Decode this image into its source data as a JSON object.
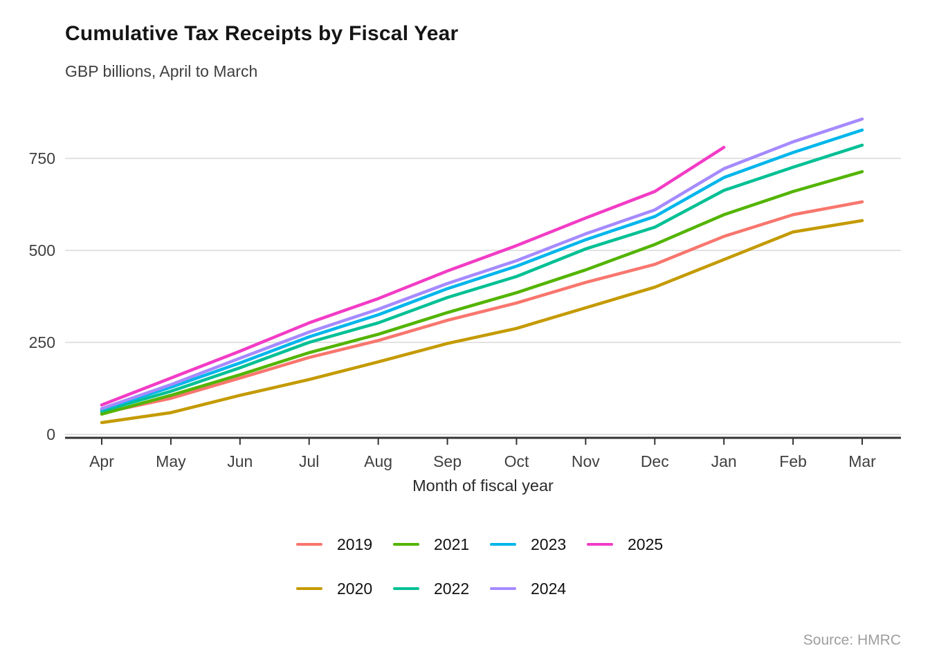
{
  "header": {
    "title": "Cumulative Tax Receipts by Fiscal Year",
    "subtitle": "GBP billions, April to March"
  },
  "footer": {
    "source": "Source: HMRC"
  },
  "chart_data": {
    "type": "line",
    "title": "Cumulative Tax Receipts by Fiscal Year",
    "subtitle": "GBP billions, April to March",
    "xlabel": "Month of fiscal year",
    "ylabel": "",
    "x_categories": [
      "Apr",
      "May",
      "Jun",
      "Jul",
      "Aug",
      "Sep",
      "Oct",
      "Nov",
      "Dec",
      "Jan",
      "Feb",
      "Mar"
    ],
    "y_ticks": [
      0,
      250,
      500,
      750
    ],
    "ylim": [
      0,
      880
    ],
    "grid": true,
    "legend_position": "bottom",
    "legend_order": [
      "2019",
      "2021",
      "2023",
      "2025",
      "2020",
      "2022",
      "2024"
    ],
    "series": [
      {
        "name": "2019",
        "color": "#F8766D",
        "values": [
          58,
          98,
          153,
          209,
          255,
          310,
          357,
          413,
          462,
          538,
          597,
          632
        ]
      },
      {
        "name": "2020",
        "color": "#C49A00",
        "values": [
          32,
          59,
          106,
          149,
          197,
          247,
          288,
          344,
          400,
          475,
          550,
          581
        ]
      },
      {
        "name": "2021",
        "color": "#53B400",
        "values": [
          55,
          106,
          162,
          222,
          272,
          331,
          385,
          447,
          516,
          597,
          660,
          714
        ]
      },
      {
        "name": "2022",
        "color": "#00C094",
        "values": [
          63,
          117,
          181,
          250,
          303,
          372,
          429,
          504,
          563,
          663,
          726,
          786
        ]
      },
      {
        "name": "2023",
        "color": "#00B6EB",
        "values": [
          68,
          128,
          194,
          265,
          325,
          396,
          457,
          529,
          592,
          698,
          766,
          827
        ]
      },
      {
        "name": "2024",
        "color": "#A58AFF",
        "values": [
          70,
          135,
          207,
          278,
          340,
          410,
          472,
          545,
          610,
          722,
          795,
          857
        ]
      },
      {
        "name": "2025",
        "color": "#F23CC5",
        "values": [
          80,
          153,
          226,
          303,
          369,
          444,
          513,
          588,
          660,
          780,
          null,
          null
        ]
      }
    ]
  }
}
